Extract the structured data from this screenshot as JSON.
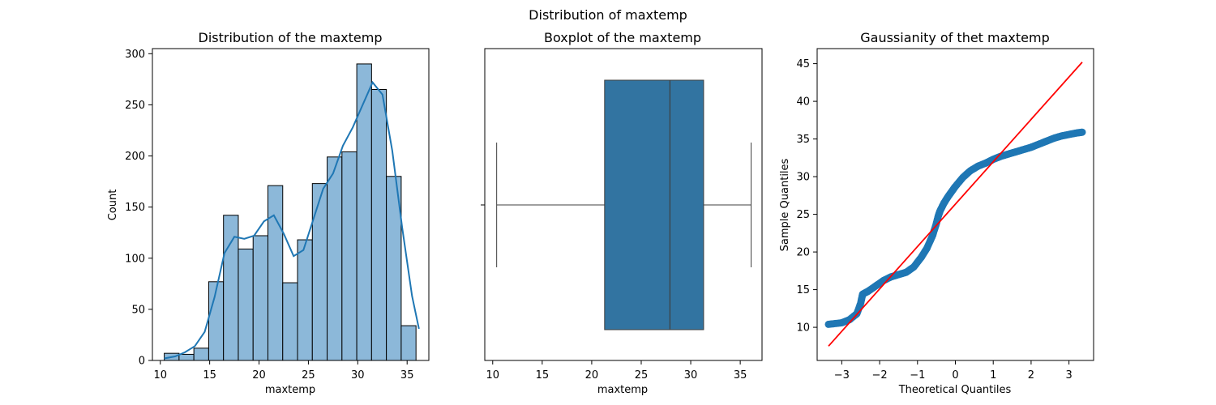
{
  "figure": {
    "suptitle": "Distribution of maxtemp"
  },
  "colors": {
    "hist_fill": "#8cb8d9",
    "hist_edge": "#000000",
    "kde_line": "#1f77b4",
    "box_fill": "#3274a1",
    "box_edge": "#3f3f3f",
    "qq_points": "#1f77b4",
    "qq_line": "#ff0000"
  },
  "chart_data": [
    {
      "type": "bar",
      "subtype": "histogram-with-kde",
      "title": "Distribution of the maxtemp",
      "xlabel": "maxtemp",
      "ylabel": "Count",
      "xlim": [
        9.2,
        37.2
      ],
      "ylim": [
        0,
        305
      ],
      "xticks": [
        10,
        15,
        20,
        25,
        30,
        35
      ],
      "yticks": [
        0,
        50,
        100,
        150,
        200,
        250,
        300
      ],
      "bin_edges": [
        10.4,
        11.9,
        13.4,
        14.9,
        16.4,
        17.9,
        19.4,
        20.9,
        22.4,
        23.9,
        25.4,
        26.9,
        28.4,
        29.9,
        31.4,
        32.9,
        34.4,
        35.9
      ],
      "values": [
        7,
        6,
        12,
        77,
        142,
        109,
        122,
        171,
        76,
        118,
        173,
        199,
        204,
        290,
        265,
        180,
        34
      ],
      "kde": {
        "x": [
          10.4,
          11.5,
          12.5,
          13.5,
          14.5,
          15.5,
          16.5,
          17.5,
          18.5,
          19.5,
          20.5,
          21.5,
          22.5,
          23.5,
          24.5,
          25.5,
          26.5,
          27.5,
          28.5,
          29.5,
          30.5,
          31.5,
          32.5,
          33.5,
          34.5,
          35.5,
          36.2
        ],
        "y": [
          2,
          4,
          8,
          14,
          28,
          62,
          105,
          121,
          119,
          122,
          136,
          142,
          124,
          102,
          108,
          138,
          168,
          183,
          210,
          228,
          250,
          272,
          260,
          205,
          130,
          63,
          31
        ]
      }
    },
    {
      "type": "box",
      "title": "Boxplot of the maxtemp",
      "xlabel": "maxtemp",
      "xlim": [
        9.2,
        37.2
      ],
      "xticks": [
        10,
        15,
        20,
        25,
        30,
        35
      ],
      "whisker_low": 10.4,
      "q1": 21.3,
      "median": 27.9,
      "q3": 31.3,
      "whisker_high": 36.1
    },
    {
      "type": "scatter",
      "subtype": "qq-plot",
      "title": "Gaussianity of thet  maxtemp",
      "xlabel": "Theoretical Quantiles",
      "ylabel": "Sample Quantiles",
      "xlim": [
        -3.65,
        3.65
      ],
      "ylim": [
        5.6,
        47.0
      ],
      "xticks": [
        -3,
        -2,
        -1,
        0,
        1,
        2,
        3
      ],
      "yticks": [
        10,
        15,
        20,
        25,
        30,
        35,
        40,
        45
      ],
      "points_curve": {
        "x": [
          -3.35,
          -3.0,
          -2.8,
          -2.6,
          -2.5,
          -2.45,
          -2.3,
          -2.1,
          -1.9,
          -1.7,
          -1.5,
          -1.3,
          -1.1,
          -0.9,
          -0.75,
          -0.6,
          -0.5,
          -0.45,
          -0.4,
          -0.3,
          -0.2,
          -0.1,
          0.0,
          0.2,
          0.4,
          0.6,
          0.8,
          1.0,
          1.2,
          1.4,
          1.6,
          1.8,
          2.0,
          2.2,
          2.4,
          2.6,
          2.8,
          3.0,
          3.2,
          3.35
        ],
        "y": [
          10.4,
          10.6,
          11.0,
          11.8,
          13.2,
          14.4,
          14.8,
          15.5,
          16.2,
          16.7,
          17.0,
          17.3,
          18.0,
          19.3,
          20.5,
          22.2,
          23.8,
          24.8,
          25.5,
          26.5,
          27.3,
          28.0,
          28.7,
          29.9,
          30.8,
          31.4,
          31.8,
          32.3,
          32.7,
          33.0,
          33.3,
          33.6,
          33.9,
          34.3,
          34.7,
          35.1,
          35.4,
          35.6,
          35.8,
          35.9
        ]
      },
      "reference_line": {
        "x": [
          -3.35,
          3.35
        ],
        "y": [
          7.5,
          45.2
        ]
      }
    }
  ]
}
